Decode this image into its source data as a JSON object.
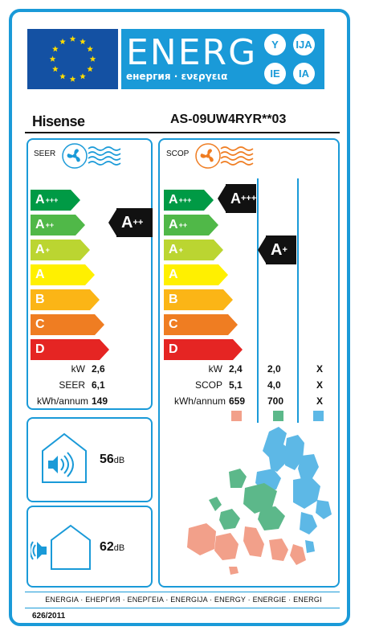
{
  "header": {
    "energy_word": "ENERG",
    "subtitle": "енергия · ενεργεια",
    "lang_codes": [
      "Y",
      "IJA",
      "IE",
      "IA"
    ]
  },
  "product": {
    "brand": "Hisense",
    "model": "AS-09UW4RYR**03"
  },
  "seer_panel": {
    "title": "SEER",
    "rating": {
      "main": "A",
      "plus": "++"
    },
    "scale": [
      {
        "main": "A",
        "plus": "+++",
        "color": "#009a45"
      },
      {
        "main": "A",
        "plus": "++",
        "color": "#50b848"
      },
      {
        "main": "A",
        "plus": "+",
        "color": "#bbd531"
      },
      {
        "main": "A",
        "plus": "",
        "color": "#fff000"
      },
      {
        "main": "B",
        "plus": "",
        "color": "#fbb516"
      },
      {
        "main": "C",
        "plus": "",
        "color": "#ef7d22"
      },
      {
        "main": "D",
        "plus": "",
        "color": "#e52523"
      }
    ],
    "rows": [
      {
        "label": "kW",
        "value": "2,6"
      },
      {
        "label": "SEER",
        "value": "6,1"
      },
      {
        "label": "kWh/annum",
        "value": "149"
      }
    ]
  },
  "scop_panel": {
    "title": "SCOP",
    "rating_warm": {
      "main": "A",
      "plus": "+++"
    },
    "rating_avg": {
      "main": "A",
      "plus": "+"
    },
    "rows": [
      {
        "label": "kW",
        "warm": "2,4",
        "avg": "2,0",
        "cold": "X"
      },
      {
        "label": "SCOP",
        "warm": "5,1",
        "avg": "4,0",
        "cold": "X"
      },
      {
        "label": "kWh/annum",
        "warm": "659",
        "avg": "700",
        "cold": "X"
      }
    ],
    "zone_colors": [
      "#f2a08a",
      "#5cb88a",
      "#5db8e6"
    ]
  },
  "noise_indoor": {
    "value": "56",
    "unit": "dB"
  },
  "noise_outdoor": {
    "value": "62",
    "unit": "dB"
  },
  "footer": {
    "languages": "ENERGIA · ЕНЕРГИЯ · ΕΝΕΡΓΕΙΑ · ENERGIJA · ENERGY · ENERGIE · ENERGI",
    "regulation": "626/2011"
  },
  "colors": {
    "accent": "#1a9ad8",
    "eu_blue": "#1451a3",
    "eu_star": "#ffdd00"
  }
}
